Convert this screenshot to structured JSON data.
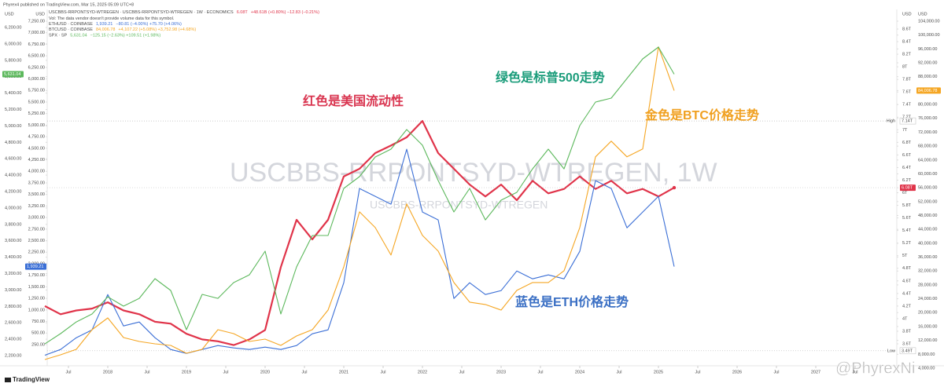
{
  "chart_data": {
    "type": "line",
    "publisher": "Phyrex4 published on TradingView.com, Mar 15, 2025 05:09 UTC+8",
    "note": "Vol: The data vendor doesn't provide volume data for this symbol.",
    "watermark": "USCBBS-RRPONTSYD-WTREGEN, 1W",
    "watermark_small": "USCBBS-RRPONTSYD-WTREGEN",
    "brand": "TradingView",
    "handle": "@PhyrexNi",
    "unit": "USD",
    "annotations": [
      {
        "text": "红色是美国流动性",
        "color": "#d9344f"
      },
      {
        "text": "绿色是标普500走势",
        "color": "#1a9c7a"
      },
      {
        "text": "金色是BTC价格走势",
        "color": "#f0a020"
      },
      {
        "text": "蓝色是ETH价格走势",
        "color": "#3a6fc4"
      }
    ],
    "x": [
      2017.2,
      2017.4,
      2017.6,
      2017.8,
      2018.0,
      2018.2,
      2018.4,
      2018.6,
      2018.8,
      2019.0,
      2019.2,
      2019.4,
      2019.6,
      2019.8,
      2020.0,
      2020.2,
      2020.4,
      2020.6,
      2020.8,
      2021.0,
      2021.2,
      2021.4,
      2021.6,
      2021.8,
      2022.0,
      2022.2,
      2022.4,
      2022.6,
      2022.8,
      2023.0,
      2023.2,
      2023.4,
      2023.6,
      2023.8,
      2024.0,
      2024.2,
      2024.4,
      2024.6,
      2024.8,
      2025.0,
      2025.2
    ],
    "xlim": [
      2017.23,
      2028.03
    ],
    "xticks": [
      {
        "value": 2017.5,
        "label": "Jul"
      },
      2018,
      {
        "value": 2018.5,
        "label": "Jul"
      },
      2019,
      {
        "value": 2019.5,
        "label": "Jul"
      },
      2020,
      {
        "value": 2020.5,
        "label": "Jul"
      },
      2021,
      {
        "value": 2021.5,
        "label": "Jul"
      },
      2022,
      {
        "value": 2022.5,
        "label": "Jul"
      },
      2023,
      {
        "value": 2023.5,
        "label": "Jul"
      },
      2024,
      {
        "value": 2024.5,
        "label": "Jul"
      },
      2025,
      {
        "value": 2025.5,
        "label": "Jul"
      },
      2026,
      {
        "value": 2026.5,
        "label": "Jul"
      },
      2027,
      {
        "value": 2027.5,
        "label": "Jul"
      }
    ],
    "ylim": [
      2200,
      6200
    ],
    "yticks": [
      {
        "value": 2200,
        "label": "2,200.00"
      },
      {
        "value": 2400,
        "label": "2,400.00"
      },
      {
        "value": 2600,
        "label": "2,600.00"
      },
      {
        "value": 2800,
        "label": "2,800.00"
      },
      {
        "value": 3000,
        "label": "3,000.00"
      },
      {
        "value": 3200,
        "label": "3,200.00"
      },
      {
        "value": 3400,
        "label": "3,400.00"
      },
      {
        "value": 3600,
        "label": "3,600.00"
      },
      {
        "value": 3800,
        "label": "3,800.00"
      },
      {
        "value": 4000,
        "label": "4,000.00"
      },
      {
        "value": 4200,
        "label": "4,200.00"
      },
      {
        "value": 4400,
        "label": "4,400.00"
      },
      {
        "value": 4600,
        "label": "4,600.00"
      },
      {
        "value": 4800,
        "label": "4,800.00"
      },
      {
        "value": 5000,
        "label": "5,000.00"
      },
      {
        "value": 5200,
        "label": "5,200.00"
      },
      {
        "value": 5400,
        "label": "5,400.00"
      },
      {
        "value": 5600,
        "label": "5,600.00"
      },
      {
        "value": 5800,
        "label": "5,800.00"
      },
      {
        "value": 6000,
        "label": "6,000.00"
      },
      {
        "value": 6200,
        "label": "6,200.00"
      }
    ],
    "y2lim": [
      250,
      7250
    ],
    "y2ticks": [
      {
        "value": 250,
        "label": "250.00"
      },
      {
        "value": 500,
        "label": "500.00"
      },
      {
        "value": 750,
        "label": "750.00"
      },
      {
        "value": 1000,
        "label": "1,000.00"
      },
      {
        "value": 1250,
        "label": "1,250.00"
      },
      {
        "value": 1500,
        "label": "1,500.00"
      },
      {
        "value": 1750,
        "label": "1,750.00"
      },
      {
        "value": 2000,
        "label": "2,000.00"
      },
      {
        "value": 2250,
        "label": "2,250.00"
      },
      {
        "value": 2500,
        "label": "2,500.00"
      },
      {
        "value": 2750,
        "label": "2,750.00"
      },
      {
        "value": 3000,
        "label": "3,000.00"
      },
      {
        "value": 3250,
        "label": "3,250.00"
      },
      {
        "value": 3500,
        "label": "3,500.00"
      },
      {
        "value": 3750,
        "label": "3,750.00"
      },
      {
        "value": 4000,
        "label": "4,000.00"
      },
      {
        "value": 4250,
        "label": "4,250.00"
      },
      {
        "value": 4500,
        "label": "4,500.00"
      },
      {
        "value": 4750,
        "label": "4,750.00"
      },
      {
        "value": 5000,
        "label": "5,000.00"
      },
      {
        "value": 5250,
        "label": "5,250.00"
      },
      {
        "value": 5500,
        "label": "5,500.00"
      },
      {
        "value": 5750,
        "label": "5,750.00"
      },
      {
        "value": 6000,
        "label": "6,000.00"
      },
      {
        "value": 6250,
        "label": "6,250.00"
      },
      {
        "value": 6500,
        "label": "6,500.00"
      },
      {
        "value": 6750,
        "label": "6,750.00"
      },
      {
        "value": 7000,
        "label": "7,000.00"
      },
      {
        "value": 7250,
        "label": "7,250.00"
      }
    ],
    "y3lim": [
      3.6,
      8.6
    ],
    "y3ticks": [
      {
        "value": 3.6,
        "label": "3.6T"
      },
      {
        "value": 3.8,
        "label": "3.8T"
      },
      {
        "value": 4,
        "label": "4T"
      },
      {
        "value": 4.2,
        "label": "4.2T"
      },
      {
        "value": 4.4,
        "label": "4.4T"
      },
      {
        "value": 4.6,
        "label": "4.6T"
      },
      {
        "value": 4.8,
        "label": "4.8T"
      },
      {
        "value": 5,
        "label": "5T"
      },
      {
        "value": 5.2,
        "label": "5.2T"
      },
      {
        "value": 5.4,
        "label": "5.4T"
      },
      {
        "value": 5.6,
        "label": "5.6T"
      },
      {
        "value": 5.8,
        "label": "5.8T"
      },
      {
        "value": 6,
        "label": "6T"
      },
      {
        "value": 6.2,
        "label": "6.2T"
      },
      {
        "value": 6.4,
        "label": "6.4T"
      },
      {
        "value": 6.6,
        "label": "6.6T"
      },
      {
        "value": 6.8,
        "label": "6.8T"
      },
      {
        "value": 7,
        "label": "7T"
      },
      {
        "value": 7.2,
        "label": "7.2T"
      },
      {
        "value": 7.4,
        "label": "7.4T"
      },
      {
        "value": 7.6,
        "label": "7.6T"
      },
      {
        "value": 7.8,
        "label": "7.8T"
      },
      {
        "value": 8,
        "label": "8T"
      },
      {
        "value": 8.2,
        "label": "8.2T"
      },
      {
        "value": 8.4,
        "label": "8.4T"
      },
      {
        "value": 8.6,
        "label": "8.6T"
      }
    ],
    "y4lim": [
      4000,
      104000
    ],
    "y4ticks": [
      {
        "value": 4000,
        "label": "4,000.00"
      },
      {
        "value": 8000,
        "label": "8,000.00"
      },
      {
        "value": 12000,
        "label": "12,000.00"
      },
      {
        "value": 16000,
        "label": "16,000.00"
      },
      {
        "value": 20000,
        "label": "20,000.00"
      },
      {
        "value": 24000,
        "label": "24,000.00"
      },
      {
        "value": 28000,
        "label": "28,000.00"
      },
      {
        "value": 32000,
        "label": "32,000.00"
      },
      {
        "value": 36000,
        "label": "36,000.00"
      },
      {
        "value": 40000,
        "label": "40,000.00"
      },
      {
        "value": 44000,
        "label": "44,000.00"
      },
      {
        "value": 48000,
        "label": "48,000.00"
      },
      {
        "value": 52000,
        "label": "52,000.00"
      },
      {
        "value": 56000,
        "label": "56,000.00"
      },
      {
        "value": 60000,
        "label": "60,000.00"
      },
      {
        "value": 64000,
        "label": "64,000.00"
      },
      {
        "value": 68000,
        "label": "68,000.00"
      },
      {
        "value": 72000,
        "label": "72,000.00"
      },
      {
        "value": 76000,
        "label": "76,000.00"
      },
      {
        "value": 80000,
        "label": "80,000.00"
      },
      {
        "value": 84000,
        "label": "84,000.00"
      },
      {
        "value": 88000,
        "label": "88,000.00"
      },
      {
        "value": 92000,
        "label": "92,000.00"
      },
      {
        "value": 96000,
        "label": "96,000.00"
      },
      {
        "value": 100000,
        "label": "100,000.00"
      },
      {
        "value": 104000,
        "label": "104,000.00"
      }
    ],
    "markers": [
      {
        "label": "High",
        "value": 7.14,
        "value_label": "7.14T",
        "axis": "y3"
      },
      {
        "label": "Low",
        "value": 3.49,
        "value_label": "3.49T",
        "axis": "y3"
      }
    ],
    "series": [
      {
        "name": "USCBBS-RRPONTSYD-WTREGEN · USCBBS-RRPONTSYD-WTREGEN · 1W · ECONOMICS",
        "color": "#e0344a",
        "axis": "y3",
        "last_label": "6.08T",
        "legend_text": "+48.61B (+0.80%)   −12.83 (−0.21%)",
        "values": [
          4.2,
          4.07,
          4.13,
          4.16,
          4.26,
          4.13,
          4.07,
          3.95,
          3.92,
          3.76,
          3.67,
          3.64,
          3.58,
          3.67,
          3.82,
          4.82,
          5.57,
          5.26,
          5.57,
          6.26,
          6.38,
          6.63,
          6.75,
          6.88,
          7.14,
          6.63,
          6.38,
          6.13,
          5.94,
          6.13,
          5.88,
          6.19,
          5.99,
          6.06,
          6.26,
          6.06,
          6.19,
          5.99,
          6.06,
          5.94,
          6.08
        ]
      },
      {
        "name": "ETHUSD · COINBASE",
        "color": "#3b6fd6",
        "axis": "y2",
        "last_label": "1,939.21",
        "legend_text": "−80.81 (−4.00%)   +75.70 (+4.06%)",
        "values": [
          20,
          144,
          399,
          569,
          1334,
          654,
          739,
          399,
          144,
          59,
          144,
          229,
          178,
          144,
          195,
          144,
          229,
          484,
          569,
          1589,
          3629,
          3459,
          3289,
          4479,
          3119,
          2949,
          1249,
          1589,
          1334,
          1419,
          1844,
          1674,
          1759,
          1674,
          2269,
          3799,
          3629,
          2779,
          3119,
          3459,
          1939.21
        ]
      },
      {
        "name": "BTCUSD · COINBASE",
        "color": "#f5a623",
        "axis": "y4",
        "last_label": "84,006.78",
        "legend_text": "+4,107.22 (+5.08%)   +3,752.98 (+4.68%)",
        "values": [
          6490,
          7850,
          9430,
          15090,
          18490,
          12830,
          11700,
          11020,
          10570,
          8300,
          9430,
          15090,
          13960,
          11700,
          12380,
          10570,
          13280,
          15090,
          20750,
          33210,
          49050,
          44530,
          36600,
          51320,
          42260,
          37730,
          28680,
          23020,
          22340,
          20750,
          26410,
          28680,
          28680,
          32070,
          44530,
          64900,
          69430,
          64900,
          67170,
          96600,
          84006.78
        ]
      },
      {
        "name": "SPX · SP",
        "color": "#5cb85c",
        "axis": "y",
        "last_label": "5,631.04",
        "legend_text": "−125.15 (−2.63%)   +109.51 (+1.98%)",
        "values": [
          2343,
          2468,
          2611,
          2707,
          2917,
          2803,
          2898,
          3138,
          2994,
          2516,
          2946,
          2898,
          3090,
          3185,
          3473,
          2707,
          3281,
          3664,
          3664,
          4238,
          4382,
          4621,
          4717,
          4956,
          4765,
          4334,
          3951,
          4238,
          3855,
          4095,
          4190,
          4477,
          4717,
          4477,
          5004,
          5291,
          5339,
          5578,
          5817,
          5961,
          5631.04
        ]
      }
    ]
  }
}
